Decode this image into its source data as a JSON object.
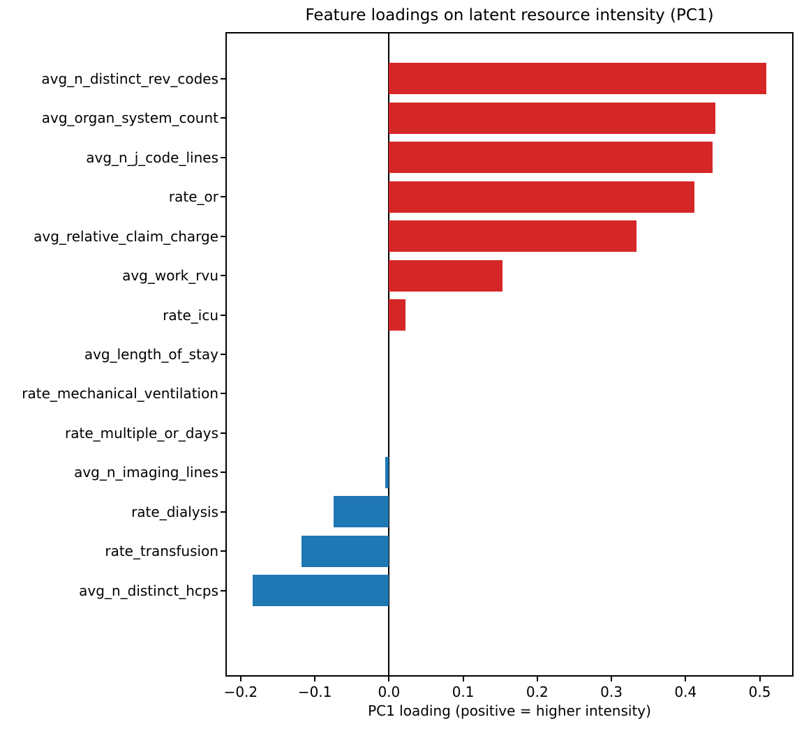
{
  "chart_data": {
    "type": "bar",
    "orientation": "horizontal",
    "title": "Feature loadings on latent resource intensity (PC1)",
    "xlabel": "PC1 loading (positive = higher intensity)",
    "categories": [
      "avg_n_distinct_rev_codes",
      "avg_organ_system_count",
      "avg_n_j_code_lines",
      "rate_or",
      "avg_relative_claim_charge",
      "avg_work_rvu",
      "rate_icu",
      "avg_length_of_stay",
      "rate_mechanical_ventilation",
      "rate_multiple_or_days",
      "avg_n_imaging_lines",
      "rate_dialysis",
      "rate_transfusion",
      "avg_n_distinct_hcps"
    ],
    "values": [
      0.509,
      0.44,
      0.436,
      0.412,
      0.334,
      0.153,
      0.022,
      0.0,
      0.0,
      0.0,
      -0.005,
      -0.075,
      -0.118,
      -0.184
    ],
    "xlim": [
      -0.2187,
      0.5437
    ],
    "xticks": [
      -0.2,
      -0.1,
      0.0,
      0.1,
      0.2,
      0.3,
      0.4,
      0.5
    ],
    "xtick_labels": [
      "−0.2",
      "−0.1",
      "0.0",
      "0.1",
      "0.2",
      "0.3",
      "0.4",
      "0.5"
    ],
    "grid": false,
    "legend": "none",
    "colors": {
      "positive_bar": "#d62728",
      "negative_bar": "#1f77b4",
      "axis": "#000000",
      "text": "#000000",
      "background": "#ffffff"
    }
  }
}
